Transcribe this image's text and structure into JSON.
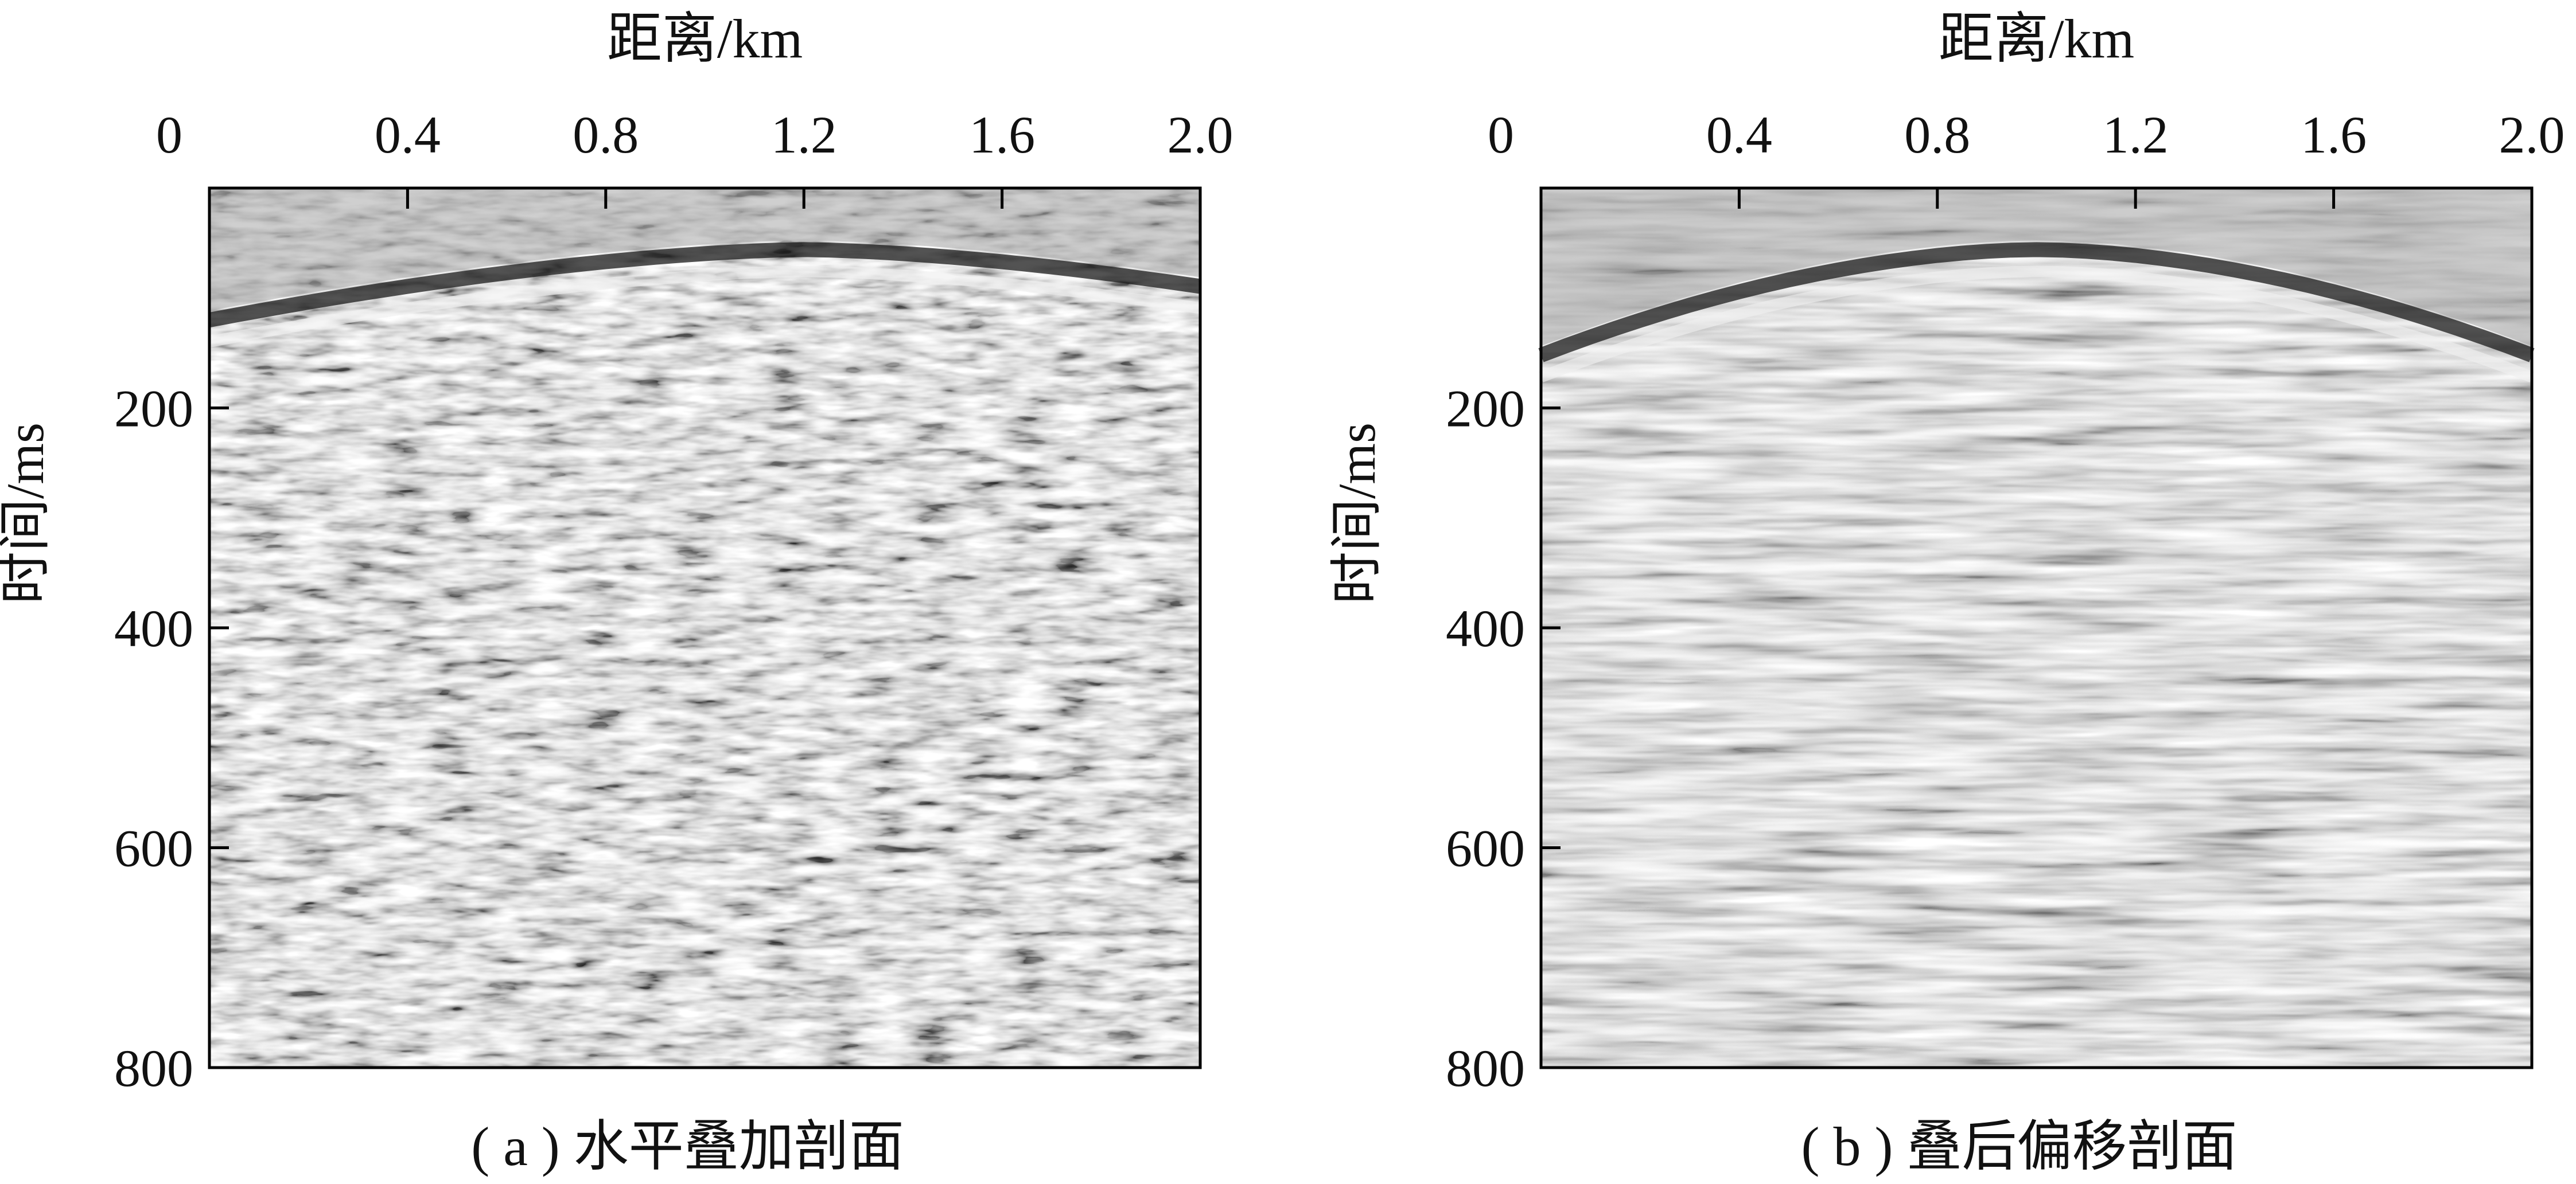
{
  "chart_data": [
    {
      "type": "heatmap",
      "title": "",
      "xlabel": "距离/km",
      "ylabel": "时间/ms",
      "x_ticks": [
        "0",
        "0.4",
        "0.8",
        "1.2",
        "1.6",
        "2.0"
      ],
      "x_tick_values": [
        0,
        0.4,
        0.8,
        1.2,
        1.6,
        2.0
      ],
      "xlim": [
        0,
        2.0
      ],
      "y_ticks": [
        "200",
        "400",
        "600",
        "800"
      ],
      "y_tick_values": [
        200,
        400,
        600,
        800
      ],
      "ylim": [
        0,
        800
      ],
      "y_inverted": true,
      "grid": false,
      "colormap": "grayscale seismic amplitude",
      "caption": "( a ) 水平叠加剖面"
    },
    {
      "type": "heatmap",
      "title": "",
      "xlabel": "距离/km",
      "ylabel": "时间/ms",
      "x_ticks": [
        "0",
        "0.4",
        "0.8",
        "1.2",
        "1.6",
        "2.0"
      ],
      "x_tick_values": [
        0,
        0.4,
        0.8,
        1.2,
        1.6,
        2.0
      ],
      "xlim": [
        0,
        2.0
      ],
      "y_ticks": [
        "200",
        "400",
        "600",
        "800"
      ],
      "y_tick_values": [
        200,
        400,
        600,
        800
      ],
      "ylim": [
        0,
        800
      ],
      "y_inverted": true,
      "grid": false,
      "colormap": "grayscale seismic amplitude",
      "caption": "( b ) 叠后偏移剖面"
    }
  ]
}
